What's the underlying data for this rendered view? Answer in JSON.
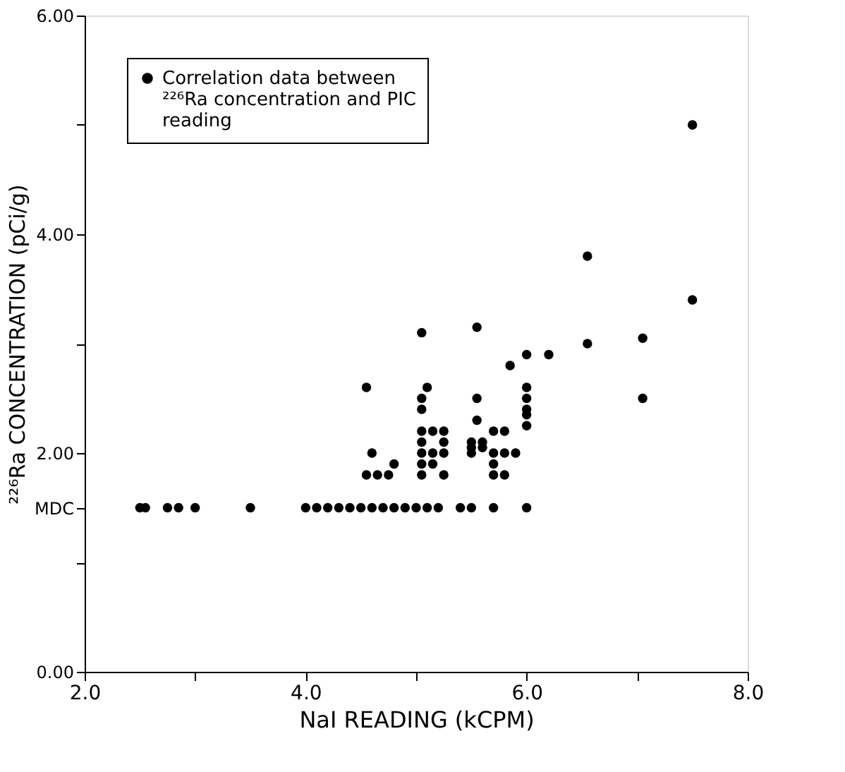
{
  "chart_data": {
    "type": "scatter",
    "xlabel": "NaI READING (kCPM)",
    "ylabel": "²²⁶Ra CONCENTRATION (pCi/g)",
    "xlim": [
      2,
      8
    ],
    "ylim": [
      0,
      6
    ],
    "xticks": [
      {
        "value": 2,
        "label": "2.0"
      },
      {
        "value": 3,
        "label": null
      },
      {
        "value": 4,
        "label": "4.0"
      },
      {
        "value": 5,
        "label": null
      },
      {
        "value": 6,
        "label": "6.0"
      },
      {
        "value": 7,
        "label": null
      },
      {
        "value": 8,
        "label": "8.0"
      }
    ],
    "yticks": [
      {
        "value": 0,
        "label": "0.00"
      },
      {
        "value": 1,
        "label": null
      },
      {
        "value": 1.5,
        "label": "MDC"
      },
      {
        "value": 2,
        "label": "2.00"
      },
      {
        "value": 3,
        "label": null
      },
      {
        "value": 4,
        "label": "4.00"
      },
      {
        "value": 5,
        "label": null
      },
      {
        "value": 6,
        "label": "6.00"
      }
    ],
    "grid": false,
    "legend": "top left",
    "marker": "circle",
    "series": [
      {
        "name": "Correlation data between ²²⁶Ra concentration and PIC reading",
        "color": "#000000",
        "x": [
          7.5,
          6.55,
          7.5,
          5.55,
          5.05,
          7.05,
          6.55,
          6.2,
          6.0,
          5.85,
          4.55,
          5.1,
          5.05,
          5.05,
          5.55,
          5.55,
          7.05,
          6.0,
          6.0,
          6.0,
          6.0,
          6.0,
          5.05,
          5.15,
          5.25,
          5.05,
          5.25,
          5.05,
          5.15,
          5.25,
          5.05,
          5.15,
          5.05,
          5.25,
          4.6,
          4.55,
          4.65,
          4.75,
          4.8,
          5.5,
          5.6,
          5.5,
          5.6,
          5.5,
          5.7,
          5.8,
          5.7,
          5.8,
          5.9,
          5.7,
          5.7,
          5.8,
          2.5,
          2.55,
          2.75,
          2.85,
          3.0,
          3.5,
          4.0,
          4.1,
          4.2,
          4.3,
          4.4,
          4.5,
          4.6,
          4.7,
          4.8,
          4.9,
          5.0,
          5.1,
          5.2,
          5.4,
          5.5,
          5.7,
          6.0
        ],
        "values": [
          5.0,
          3.8,
          3.4,
          3.15,
          3.1,
          3.05,
          3.0,
          2.9,
          2.9,
          2.8,
          2.6,
          2.6,
          2.5,
          2.4,
          2.5,
          2.3,
          2.5,
          2.6,
          2.5,
          2.4,
          2.35,
          2.25,
          2.2,
          2.2,
          2.2,
          2.1,
          2.1,
          2.0,
          2.0,
          2.0,
          1.9,
          1.9,
          1.8,
          1.8,
          2.0,
          1.8,
          1.8,
          1.8,
          1.9,
          2.1,
          2.1,
          2.05,
          2.05,
          2.0,
          2.2,
          2.2,
          2.0,
          2.0,
          2.0,
          1.9,
          1.8,
          1.8,
          1.5,
          1.5,
          1.5,
          1.5,
          1.5,
          1.5,
          1.5,
          1.5,
          1.5,
          1.5,
          1.5,
          1.5,
          1.5,
          1.5,
          1.5,
          1.5,
          1.5,
          1.5,
          1.5,
          1.5,
          1.5,
          1.5,
          1.5
        ]
      }
    ]
  }
}
